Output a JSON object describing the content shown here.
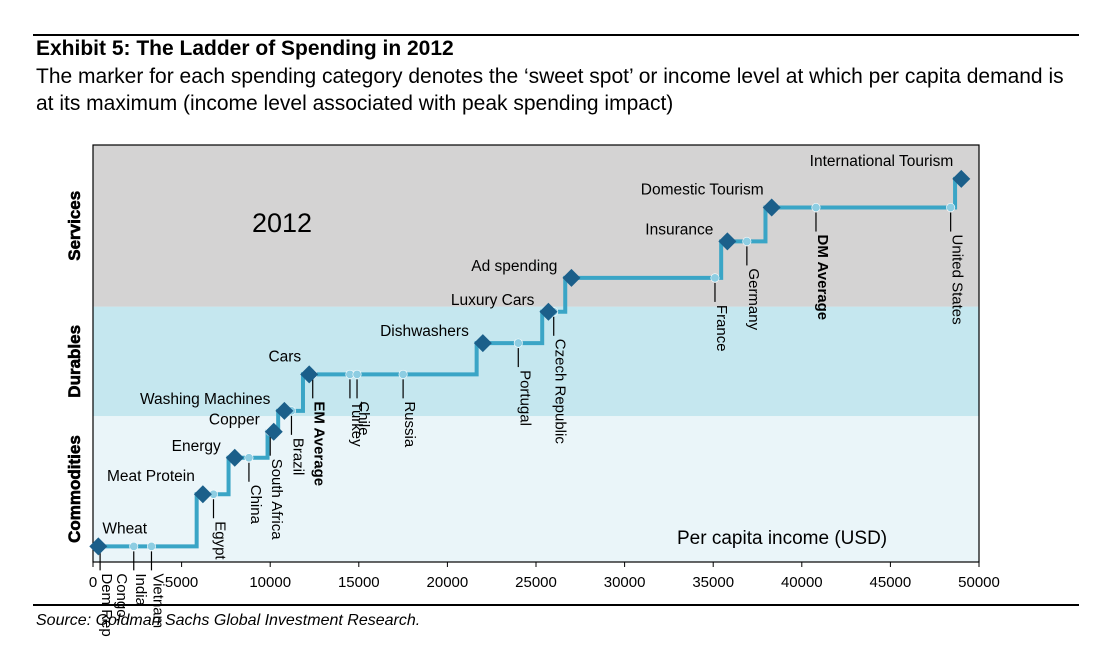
{
  "header": {
    "title": "Exhibit 5: The Ladder of Spending in 2012",
    "subtitle": "The marker for each spending category denotes the ‘sweet spot’ or income level at which per capita demand is at its maximum (income level associated with peak spending impact)"
  },
  "footer": {
    "source": "Source: Goldman Sachs Global Investment Research."
  },
  "colors": {
    "services_band": "#d4d3d3",
    "durables_band": "#c5e7ef",
    "commodities_band": "#eaf5f9",
    "ladder_line": "#3aa5c6",
    "category_marker": "#1b5f8a",
    "country_dot": "#8dcde2"
  },
  "chart_data": {
    "type": "line",
    "year_label": "2012",
    "xlabel": "Per capita income (USD)",
    "xlim": [
      0,
      50000
    ],
    "xticks": [
      0,
      5000,
      10000,
      15000,
      20000,
      25000,
      30000,
      35000,
      40000,
      45000,
      50000
    ],
    "tick_labels": [
      "0",
      "5000",
      "10000",
      "15000",
      "20000",
      "25000",
      "30000",
      "35000",
      "40000",
      "45000",
      "50000"
    ],
    "ylim": [
      0,
      16
    ],
    "grid": false,
    "bands": [
      {
        "name": "Commodities",
        "y_from": 0,
        "y_to": 5.6,
        "color": "#eaf5f9"
      },
      {
        "name": "Durables",
        "y_from": 5.6,
        "y_to": 9.8,
        "color": "#c5e7ef"
      },
      {
        "name": "Services",
        "y_from": 9.8,
        "y_to": 16,
        "color": "#d4d3d3"
      }
    ],
    "categories": [
      {
        "name": "Wheat",
        "x": 300,
        "y": 0.6,
        "label_side": "above-right"
      },
      {
        "name": "Meat Protein",
        "x": 6200,
        "y": 2.6,
        "label_side": "above-left"
      },
      {
        "name": "Energy",
        "x": 8000,
        "y": 4.0,
        "label_side": "left"
      },
      {
        "name": "Copper",
        "x": 10200,
        "y": 5.0,
        "label_side": "left"
      },
      {
        "name": "Washing Machines",
        "x": 10800,
        "y": 5.8,
        "label_side": "left"
      },
      {
        "name": "Cars",
        "x": 12200,
        "y": 7.2,
        "label_side": "above-left"
      },
      {
        "name": "Dishwashers",
        "x": 22000,
        "y": 8.4,
        "label_side": "left"
      },
      {
        "name": "Luxury Cars",
        "x": 25700,
        "y": 9.6,
        "label_side": "left"
      },
      {
        "name": "Ad spending",
        "x": 27000,
        "y": 10.9,
        "label_side": "left"
      },
      {
        "name": "Insurance",
        "x": 35800,
        "y": 12.3,
        "label_side": "left"
      },
      {
        "name": "Domestic Tourism",
        "x": 38300,
        "y": 13.6,
        "label_side": "above-left"
      },
      {
        "name": "International Tourism",
        "x": 49000,
        "y": 14.7,
        "label_side": "above-left"
      }
    ],
    "countries": [
      {
        "name": "Dem Rep Congo",
        "x": 400,
        "y": 0.6,
        "bold": false,
        "leader_to": 0.0,
        "label_lines": [
          "Dem Rep",
          "Congo,"
        ]
      },
      {
        "name": "India",
        "x": 2300,
        "y": 0.6,
        "bold": false,
        "leader_to": 0.0,
        "label_lines": [
          "India"
        ]
      },
      {
        "name": "Vietnam",
        "x": 3300,
        "y": 0.6,
        "bold": false,
        "leader_to": 0.0,
        "label_lines": [
          "Vietnam"
        ]
      },
      {
        "name": "Egypt",
        "x": 6800,
        "y": 2.6,
        "bold": false,
        "leader_to": 0.0,
        "label_lines": [
          "Egypt"
        ]
      },
      {
        "name": "China",
        "x": 8800,
        "y": 4.0,
        "bold": false,
        "leader_to": 0.0,
        "label_lines": [
          "China"
        ]
      },
      {
        "name": "South Africa",
        "x": 10000,
        "y": 5.0,
        "bold": false,
        "leader_to": 0.0,
        "label_lines": [
          "South Africa"
        ]
      },
      {
        "name": "Brazil",
        "x": 11200,
        "y": 5.8,
        "bold": false,
        "leader_to": 0.0,
        "label_lines": [
          "Brazil"
        ]
      },
      {
        "name": "EM Average",
        "x": 12400,
        "y": 7.2,
        "bold": true,
        "leader_to": 0.0,
        "label_lines": [
          "EM Average"
        ]
      },
      {
        "name": "Turkey",
        "x": 14500,
        "y": 7.2,
        "bold": false,
        "leader_to": 0.0,
        "label_lines": [
          "Turkey"
        ]
      },
      {
        "name": "Chile",
        "x": 14900,
        "y": 7.2,
        "bold": false,
        "leader_to": 0.0,
        "label_lines": [
          "Chile"
        ]
      },
      {
        "name": "Russia",
        "x": 17500,
        "y": 7.2,
        "bold": false,
        "leader_to": 0.0,
        "label_lines": [
          "Russia"
        ]
      },
      {
        "name": "Portugal",
        "x": 24000,
        "y": 8.4,
        "bold": false,
        "leader_to": 0.0,
        "label_lines": [
          "Portugal"
        ]
      },
      {
        "name": "Czech Republic",
        "x": 26000,
        "y": 9.6,
        "bold": false,
        "leader_to": 0.0,
        "label_lines": [
          "Czech Republic"
        ]
      },
      {
        "name": "France",
        "x": 35100,
        "y": 10.9,
        "bold": false,
        "leader_to": 0.0,
        "label_lines": [
          "France"
        ]
      },
      {
        "name": "Germany",
        "x": 36900,
        "y": 12.3,
        "bold": false,
        "leader_to": 0.0,
        "label_lines": [
          "Germany"
        ]
      },
      {
        "name": "DM Average",
        "x": 40800,
        "y": 13.6,
        "bold": true,
        "leader_to": 0.0,
        "label_lines": [
          "DM Average"
        ]
      },
      {
        "name": "United States",
        "x": 48400,
        "y": 13.6,
        "bold": false,
        "leader_to": 0.0,
        "label_lines": [
          "United States"
        ]
      }
    ]
  }
}
